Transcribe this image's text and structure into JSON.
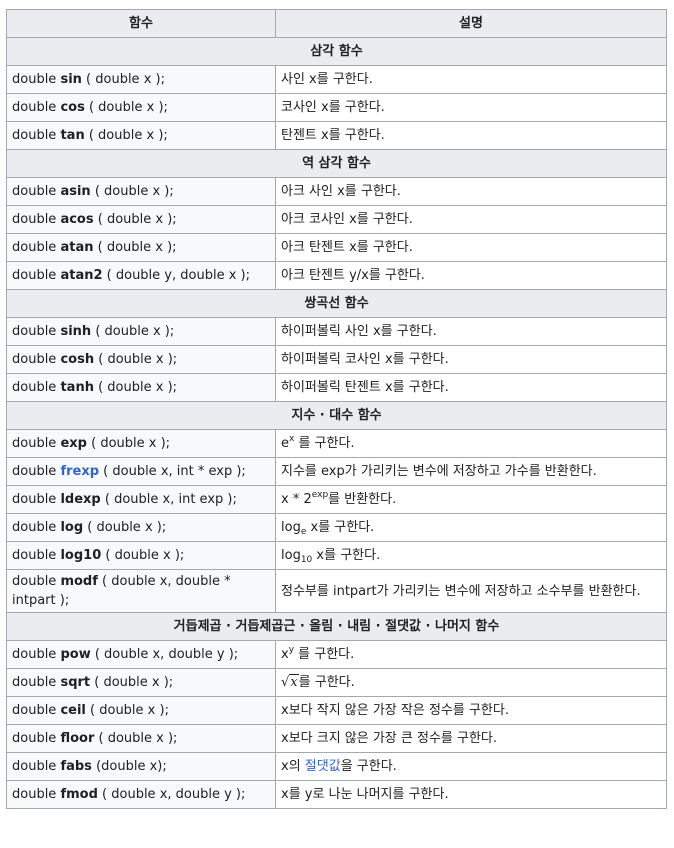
{
  "header": {
    "col1": "함수",
    "col2": "설명"
  },
  "sections": {
    "trig": "삼각 함수",
    "inverse_trig": "역 삼각 함수",
    "hyperbolic": "쌍곡선 함수",
    "exp_log": "지수 · 대수 함수",
    "power": "거듭제곱 · 거듭제곱근 · 올림 · 내림 · 절댓값 · 나머지 함수"
  },
  "common": {
    "double": "double",
    "open_args_x": "( double x );",
    "x_char": "x",
    "e_char": "e",
    "suffix_x": "를 구한다."
  },
  "rows": {
    "sin": {
      "name": "sin",
      "desc": "사인 x를 구한다."
    },
    "cos": {
      "name": "cos",
      "desc": "코사인 x를 구한다."
    },
    "tan": {
      "name": "tan",
      "desc": "탄젠트 x를 구한다."
    },
    "asin": {
      "name": "asin",
      "desc": "아크 사인 x를 구한다."
    },
    "acos": {
      "name": "acos",
      "desc": "아크 코사인 x를 구한다."
    },
    "atan": {
      "name": "atan",
      "desc": "아크 탄젠트 x를 구한다."
    },
    "atan2": {
      "name": "atan2",
      "args": "( double y, double x );",
      "desc": "아크 탄젠트 y/x를 구한다."
    },
    "sinh": {
      "name": "sinh",
      "desc": "하이퍼볼릭 사인 x를 구한다."
    },
    "cosh": {
      "name": "cosh",
      "desc": "하이퍼볼릭 코사인 x를 구한다."
    },
    "tanh": {
      "name": "tanh",
      "desc": "하이퍼볼릭 탄젠트 x를 구한다."
    },
    "exp": {
      "name": "exp",
      "desc_sup": "x",
      "desc_tail": " 를 구한다."
    },
    "frexp": {
      "name": "frexp",
      "args": "( double x, int * exp );",
      "desc": "지수를 exp가 가리키는 변수에 저장하고 가수를 반환한다."
    },
    "ldexp": {
      "name": "ldexp",
      "args": "( double x, int exp );",
      "desc_pre": "x * 2",
      "desc_sup": "exp",
      "desc_tail": "를 반환한다."
    },
    "log": {
      "name": "log",
      "desc_pre": "log",
      "desc_sub": "e",
      "desc_tail": " x를 구한다."
    },
    "log10": {
      "name": "log10",
      "desc_pre": "log",
      "desc_sub": "10",
      "desc_tail": " x를 구한다."
    },
    "modf": {
      "name": "modf",
      "args": "( double x, double * intpart );",
      "desc": "정수부를 intpart가 가리키는 변수에 저장하고 소수부를 반환한다."
    },
    "pow": {
      "name": "pow",
      "args": "( double x, double y );",
      "desc_sup": "y",
      "desc_tail": " 를 구한다."
    },
    "sqrt": {
      "name": "sqrt",
      "desc_tail": "를 구한다."
    },
    "ceil": {
      "name": "ceil",
      "desc": "x보다 작지 않은 가장 작은 정수를 구한다."
    },
    "floor": {
      "name": "floor",
      "desc": "x보다 크지 않은 가장 큰 정수를 구한다."
    },
    "fabs": {
      "name": "fabs",
      "args": "(double x);",
      "desc_pre": "x의 ",
      "desc_link": "절댓값",
      "desc_tail": "을 구한다."
    },
    "fmod": {
      "name": "fmod",
      "args": "( double x, double y );",
      "desc": "x를 y로 나눈 나머지를 구한다."
    }
  }
}
